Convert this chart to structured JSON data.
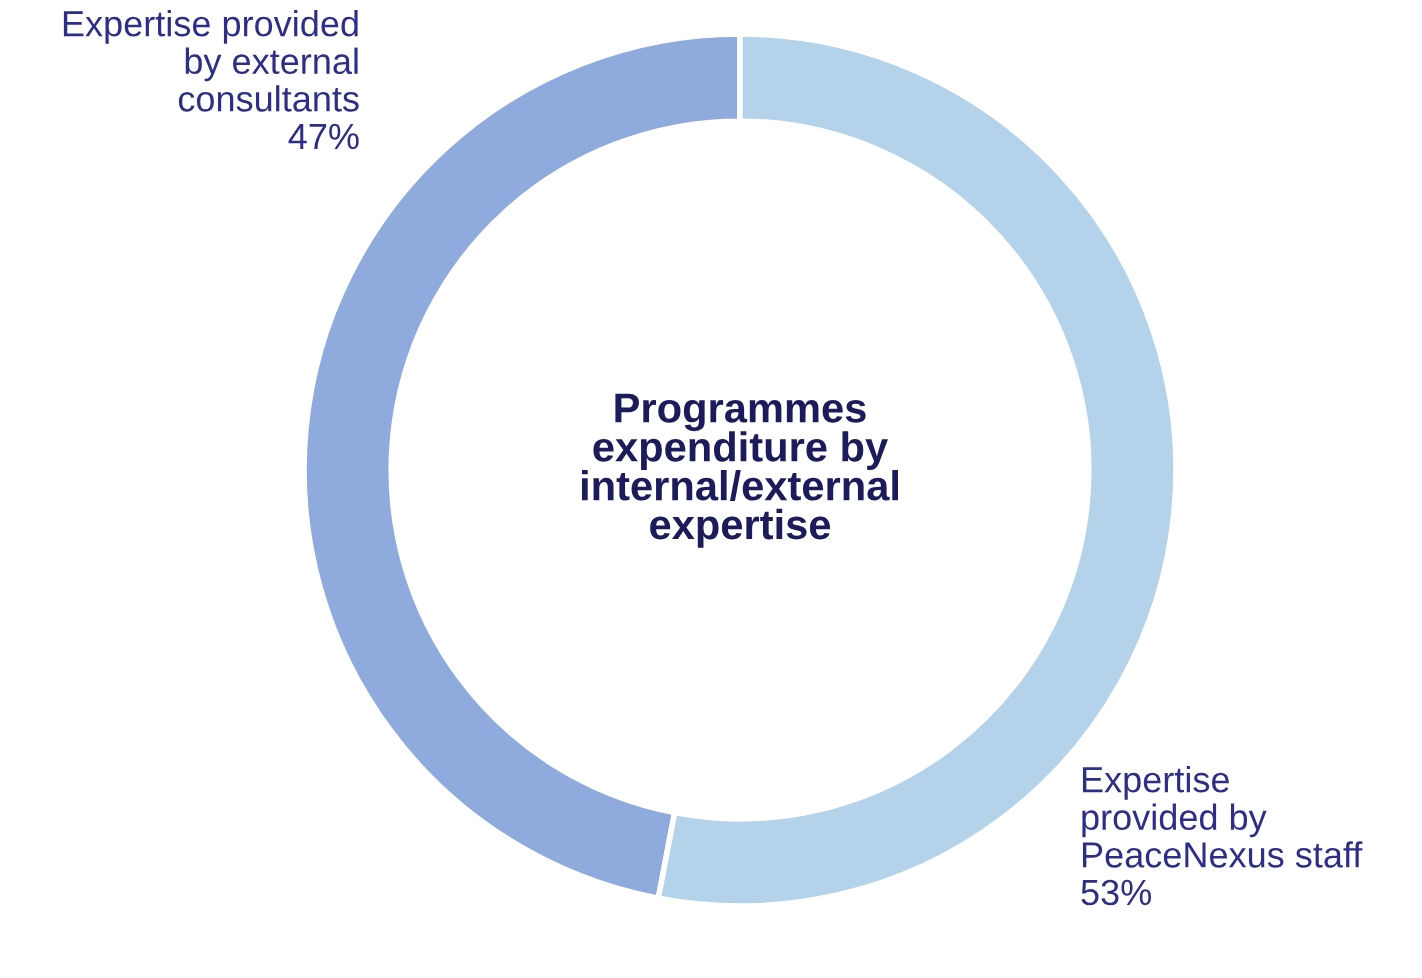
{
  "chart_data": {
    "type": "donut",
    "title": "Programmes\nexpenditure by\ninternal/external\nexpertise",
    "categories": [
      "Expertise provided\nby external\nconsultants",
      "Expertise\nprovided by\nPeaceNexus staff"
    ],
    "values": [
      47,
      53
    ],
    "colors": [
      "#8faadc",
      "#b4d3eb"
    ],
    "value_labels": [
      "47%",
      "53%"
    ]
  }
}
